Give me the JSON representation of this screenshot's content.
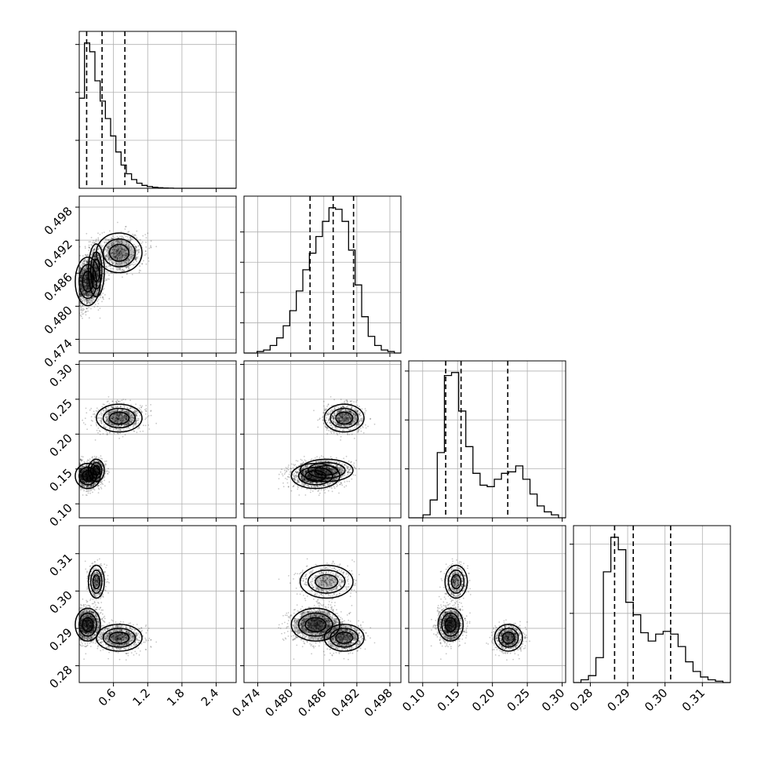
{
  "chart_data": {
    "type": "corner",
    "grid": true,
    "colors": {
      "line": "#000000",
      "grid": "#b0b0b0",
      "density": "#000000",
      "background": "#ffffff"
    },
    "params": [
      {
        "range": [
          0.0,
          2.75
        ],
        "ticks": [
          0.6,
          1.2,
          1.8,
          2.4
        ],
        "tick_labels": [
          "0.6",
          "1.2",
          "1.8",
          "2.4"
        ],
        "hist_y_ticks": [
          0.33,
          0.66,
          0.99
        ],
        "quantiles": [
          0.13,
          0.4,
          0.8
        ],
        "hist": [
          0.62,
          1.0,
          0.94,
          0.74,
          0.6,
          0.48,
          0.36,
          0.25,
          0.16,
          0.1,
          0.06,
          0.035,
          0.02,
          0.012,
          0.007,
          0.004,
          0.002,
          0.001,
          0.0,
          0.0,
          0.0,
          0.0,
          0.0,
          0.0,
          0.0,
          0.0,
          0.0,
          0.0,
          0.0,
          0.0
        ]
      },
      {
        "range": [
          0.4715,
          0.5
        ],
        "ticks": [
          0.474,
          0.48,
          0.486,
          0.492,
          0.498
        ],
        "tick_labels": [
          "0.474",
          "0.480",
          "0.486",
          "0.492",
          "0.498"
        ],
        "hist_y_ticks": [
          0.2,
          0.4,
          0.6,
          0.8
        ],
        "quantiles": [
          0.4835,
          0.4877,
          0.4914
        ],
        "hist": [
          0.0,
          0.0,
          0.01,
          0.02,
          0.05,
          0.1,
          0.18,
          0.28,
          0.41,
          0.55,
          0.66,
          0.77,
          0.87,
          0.96,
          0.95,
          0.87,
          0.68,
          0.45,
          0.24,
          0.11,
          0.05,
          0.02,
          0.01,
          0.0
        ]
      },
      {
        "range": [
          0.08,
          0.305
        ],
        "ticks": [
          0.1,
          0.15,
          0.2,
          0.25,
          0.3
        ],
        "tick_labels": [
          "0.10",
          "0.15",
          "0.20",
          "0.25",
          "0.30"
        ],
        "hist_y_ticks": [
          0.33,
          0.66,
          0.99
        ],
        "quantiles": [
          0.133,
          0.155,
          0.222
        ],
        "hist": [
          0.0,
          0.0,
          0.02,
          0.12,
          0.44,
          0.96,
          0.98,
          0.72,
          0.48,
          0.3,
          0.22,
          0.21,
          0.26,
          0.3,
          0.31,
          0.35,
          0.26,
          0.16,
          0.08,
          0.04,
          0.02,
          0.0
        ]
      },
      {
        "range": [
          0.2755,
          0.3175
        ],
        "ticks": [
          0.28,
          0.29,
          0.3,
          0.31
        ],
        "tick_labels": [
          "0.28",
          "0.29",
          "0.30",
          "0.31"
        ],
        "hist_y_ticks": [
          0.5,
          1.0
        ],
        "quantiles": [
          0.2865,
          0.2915,
          0.3015
        ],
        "hist": [
          0.0,
          0.02,
          0.05,
          0.18,
          0.8,
          1.05,
          0.96,
          0.58,
          0.49,
          0.36,
          0.3,
          0.35,
          0.37,
          0.35,
          0.26,
          0.15,
          0.08,
          0.04,
          0.02,
          0.01,
          0.0
        ]
      }
    ],
    "modes": [
      {
        "means": [
          0.15,
          0.4845,
          0.14,
          0.291
        ],
        "sds": [
          0.11,
          0.0022,
          0.009,
          0.0022
        ],
        "weight": 0.48
      },
      {
        "means": [
          0.3,
          0.4865,
          0.148,
          0.3025
        ],
        "sds": [
          0.07,
          0.0024,
          0.008,
          0.0022
        ],
        "weight": 0.2
      },
      {
        "means": [
          0.7,
          0.4897,
          0.223,
          0.2875
        ],
        "sds": [
          0.2,
          0.0018,
          0.01,
          0.0018
        ],
        "weight": 0.32
      }
    ]
  }
}
